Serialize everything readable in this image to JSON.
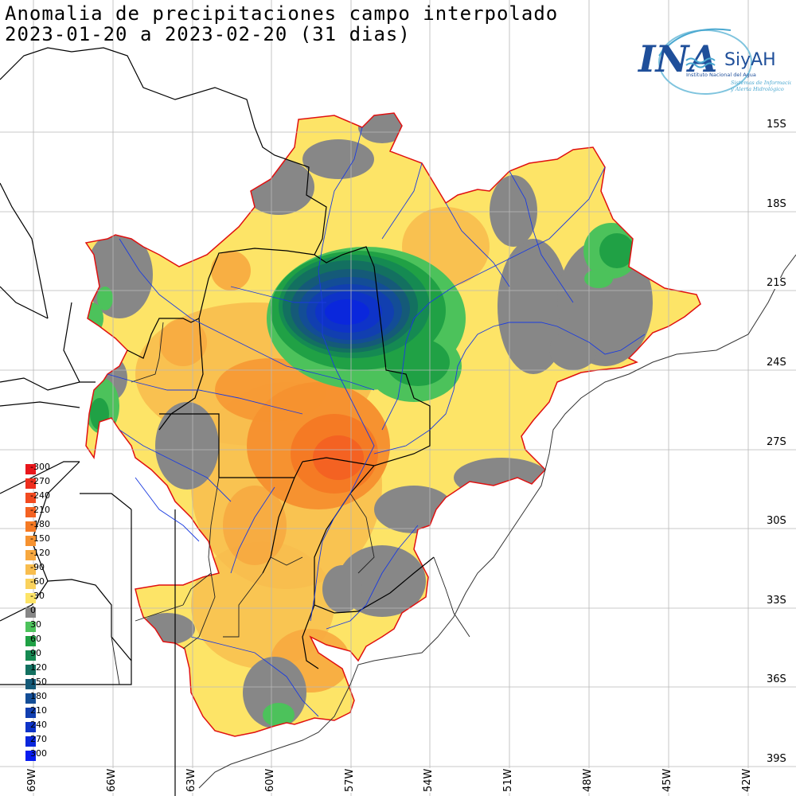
{
  "title": {
    "line1": "Anomalia de precipitaciones campo interpolado",
    "line2": "2023-01-20 a 2023-02-20 (31 dias)"
  },
  "logo": {
    "brand": "INA",
    "system": "SiyAH",
    "org": "Instituto Nacional del Agua",
    "tagline1": "Sistemas de Información",
    "tagline2": "y Alerta Hidrológico"
  },
  "lat_labels": [
    "15S",
    "18S",
    "21S",
    "24S",
    "27S",
    "30S",
    "33S",
    "36S",
    "39S"
  ],
  "lon_labels": [
    "69W",
    "66W",
    "63W",
    "60W",
    "57W",
    "54W",
    "51W",
    "48W",
    "45W",
    "42W"
  ],
  "legend": {
    "items": [
      {
        "label": "-300",
        "color": "#e8161b"
      },
      {
        "label": "-270",
        "color": "#ee2e1e"
      },
      {
        "label": "-240",
        "color": "#f24a20"
      },
      {
        "label": "-210",
        "color": "#f46222"
      },
      {
        "label": "-180",
        "color": "#f57a24"
      },
      {
        "label": "-150",
        "color": "#f69230"
      },
      {
        "label": "-120",
        "color": "#f7a83f"
      },
      {
        "label": "-90",
        "color": "#f8bd4e"
      },
      {
        "label": "-60",
        "color": "#fad25c"
      },
      {
        "label": "-30",
        "color": "#fde467"
      },
      {
        "label": "0",
        "color": "#878787"
      },
      {
        "label": "30",
        "color": "#4cc25b"
      },
      {
        "label": "60",
        "color": "#20a145"
      },
      {
        "label": "90",
        "color": "#158a52"
      },
      {
        "label": "120",
        "color": "#137060"
      },
      {
        "label": "150",
        "color": "#155a78"
      },
      {
        "label": "180",
        "color": "#134d96"
      },
      {
        "label": "210",
        "color": "#113fb0"
      },
      {
        "label": "240",
        "color": "#0e33c8"
      },
      {
        "label": "270",
        "color": "#0a27dc"
      },
      {
        "label": "300",
        "color": "#081cf0"
      }
    ]
  }
}
